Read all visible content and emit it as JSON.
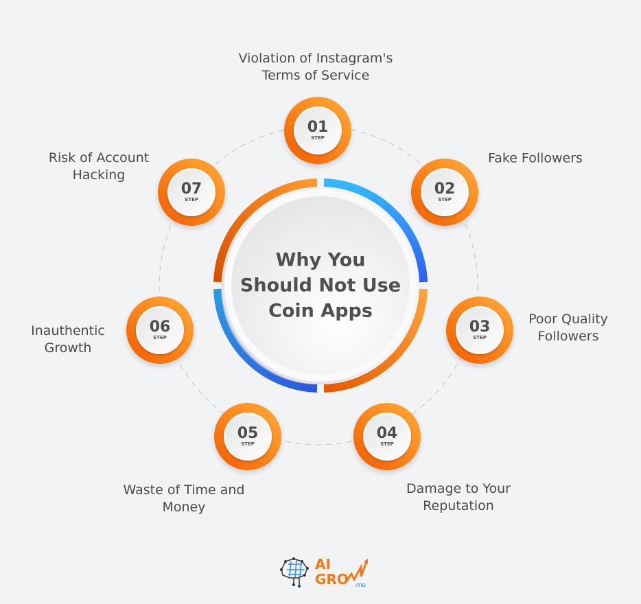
{
  "title": "Why You Should Not Use Coin Apps",
  "title_lines": [
    "Why You",
    "Should Not Use",
    "Coin Apps"
  ],
  "step_word": "STEP",
  "steps": [
    {
      "number": "01",
      "lines": [
        "Violation of Instagram's",
        "Terms of Service"
      ]
    },
    {
      "number": "02",
      "lines": [
        "Fake Followers"
      ]
    },
    {
      "number": "03",
      "lines": [
        "Poor Quality",
        "Followers"
      ]
    },
    {
      "number": "04",
      "lines": [
        "Damage to Your",
        "Reputation"
      ]
    },
    {
      "number": "05",
      "lines": [
        "Waste of Time and",
        "Money"
      ]
    },
    {
      "number": "06",
      "lines": [
        "Inauthentic",
        "Growth"
      ]
    },
    {
      "number": "07",
      "lines": [
        "Risk of Account",
        "Hacking"
      ]
    }
  ],
  "logo": {
    "line1": "AI",
    "line2": "GRO",
    "suffix": ".me"
  },
  "colors": {
    "orange": "#ff8a1e",
    "blue": "#2f6bf0",
    "text": "#4a4a4a",
    "background": "#f2f3f5"
  }
}
